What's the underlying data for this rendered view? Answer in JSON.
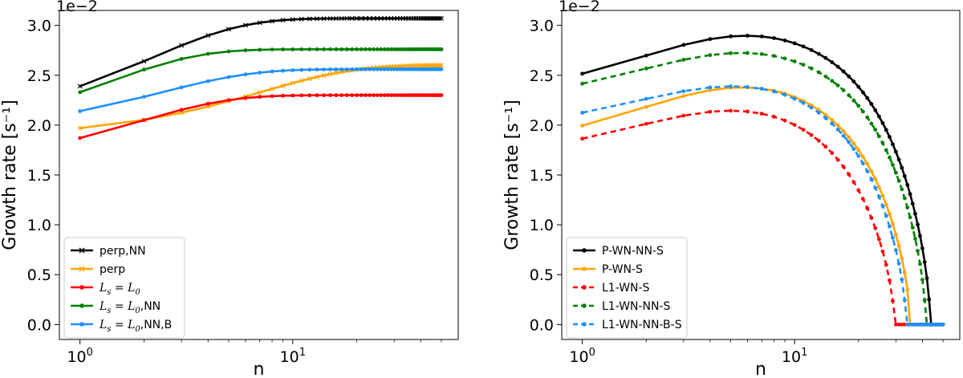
{
  "chart_data": [
    {
      "type": "line",
      "title": "",
      "xlabel": "n",
      "ylabel": "Growth rate [s⁻¹]",
      "xscale": "log",
      "xlim": [
        0.8,
        60
      ],
      "ylim": [
        -0.15,
        3.15
      ],
      "offset_label": "1e−2",
      "xticks": [
        {
          "value": 1,
          "base": "10",
          "exp": "0"
        },
        {
          "value": 10,
          "base": "10",
          "exp": "1"
        }
      ],
      "yticks": [
        "0.0",
        "0.5",
        "1.0",
        "1.5",
        "2.0",
        "2.5",
        "3.0"
      ],
      "legend_position": "lower-left",
      "series": [
        {
          "name": "perp,NN",
          "color": "#000000",
          "marker": "x",
          "dash": false,
          "asymptote": 3.07,
          "start": 2.39,
          "k": 0.46
        },
        {
          "name": "perp",
          "color": "#ffa500",
          "marker": "x",
          "dash": false,
          "asymptote": 2.6,
          "start": 1.97,
          "k": 0.14
        },
        {
          "name": "L_s = L_0",
          "label_parts": [
            "L",
            "s",
            " = ",
            "L",
            "0",
            ""
          ],
          "color": "#ff0000",
          "marker": "dot",
          "dash": false,
          "asymptote": 2.3,
          "start": 1.87,
          "k": 0.54
        },
        {
          "name": "L_s = L_0,NN",
          "label_parts": [
            "L",
            "s",
            " = ",
            "L",
            "0",
            ",NN"
          ],
          "color": "#008000",
          "marker": "dot",
          "dash": false,
          "asymptote": 2.76,
          "start": 2.33,
          "k": 0.75
        },
        {
          "name": "L_s = L_0,NN,B",
          "label_parts": [
            "L",
            "s",
            " = ",
            "L",
            "0",
            ",NN,B"
          ],
          "color": "#1e90ff",
          "marker": "dot",
          "dash": false,
          "asymptote": 2.56,
          "start": 2.14,
          "k": 0.42
        }
      ],
      "n_range": [
        1,
        50
      ]
    },
    {
      "type": "line",
      "title": "",
      "xlabel": "n",
      "ylabel": "Growth rate [s⁻¹]",
      "xscale": "log",
      "xlim": [
        0.8,
        60
      ],
      "ylim": [
        -0.15,
        3.15
      ],
      "offset_label": "1e−2",
      "xticks": [
        {
          "value": 1,
          "base": "10",
          "exp": "0"
        },
        {
          "value": 10,
          "base": "10",
          "exp": "1"
        }
      ],
      "yticks": [
        "0.0",
        "0.5",
        "1.0",
        "1.5",
        "2.0",
        "2.5",
        "3.0"
      ],
      "legend_position": "lower-left",
      "series": [
        {
          "name": "P-WN-NN-S",
          "color": "#000000",
          "marker": "dot",
          "dash": false,
          "start": 2.52,
          "amp": 3.04,
          "decay": 0.46,
          "ncut": 43.5
        },
        {
          "name": "P-WN-S",
          "color": "#ffa500",
          "marker": "dot",
          "dash": false,
          "start": 2.0,
          "amp": 2.54,
          "decay": 0.46,
          "ncut": 35.0
        },
        {
          "name": "L1-WN-S",
          "color": "#ff0000",
          "marker": "dot",
          "dash": true,
          "start": 1.87,
          "amp": 2.31,
          "decay": 0.46,
          "ncut": 29.5
        },
        {
          "name": "L1-WN-NN-S",
          "color": "#008000",
          "marker": "dot",
          "dash": true,
          "start": 2.42,
          "amp": 2.86,
          "decay": 0.46,
          "ncut": 41.5
        },
        {
          "name": "L1-WN-NN-B-S",
          "color": "#1e90ff",
          "marker": "dot",
          "dash": true,
          "start": 2.13,
          "amp": 2.54,
          "decay": 0.46,
          "ncut": 33.5
        }
      ],
      "n_range": [
        1,
        50
      ]
    }
  ]
}
